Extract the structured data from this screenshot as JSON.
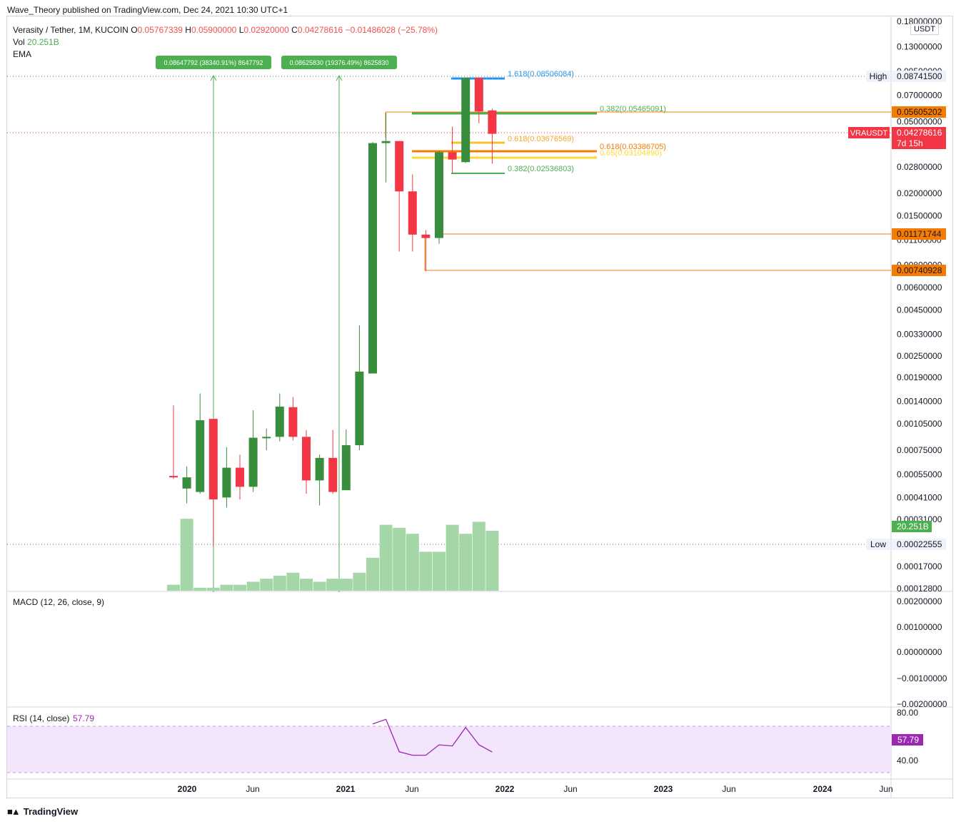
{
  "header": {
    "published": "Wave_Theory published on TradingView.com, Dec 24, 2021 10:30 UTC+1"
  },
  "legend": {
    "symbol": "Verasity / Tether, 1M, KUCOIN",
    "o_label": "O",
    "o": "0.05767339",
    "h_label": "H",
    "h": "0.05900000",
    "l_label": "L",
    "l": "0.02920000",
    "c_label": "C",
    "c": "0.04278616",
    "change": "−0.01486028 (−25.78%)",
    "vol_label": "Vol",
    "vol": "20.251B",
    "ema_label": "EMA"
  },
  "currency": "USDT",
  "colors": {
    "up": "#388e3c",
    "down": "#f23645",
    "volume_up": "#a5d6a7",
    "volume_brown": "#a1887f",
    "macd_bg": "#ffffff",
    "rsi_band": "#f3e5fc",
    "rsi_line": "#9c27b0",
    "orange": "#f57c00",
    "green_line": "#4caf50",
    "blue": "#2196f3",
    "yellow": "#fdd835"
  },
  "price_axis": [
    "0.18000000",
    "0.13000000",
    "0.09500000",
    "0.07000000",
    "0.05000000",
    "0.02800000",
    "0.02000000",
    "0.01500000",
    "0.01100000",
    "0.00800000",
    "0.00600000",
    "0.00450000",
    "0.00330000",
    "0.00250000",
    "0.00190000",
    "0.00140000",
    "0.00105000",
    "0.00075000",
    "0.00055000",
    "0.00041000",
    "0.00031000",
    "0.00017000",
    "0.00012800"
  ],
  "price_tags": [
    {
      "label": "High",
      "value": "0.08741500",
      "kind": "hl"
    },
    {
      "label": "",
      "value": "0.05605202",
      "kind": "orange"
    },
    {
      "label": "VRAUSDT",
      "value": "0.04278616",
      "sub": "7d 15h",
      "kind": "red"
    },
    {
      "label": "",
      "value": "0.01171744",
      "kind": "orange"
    },
    {
      "label": "",
      "value": "0.00740928",
      "kind": "orange"
    },
    {
      "label": "",
      "value": "20.251B",
      "kind": "green"
    },
    {
      "label": "Low",
      "value": "0.00022555",
      "kind": "hl"
    }
  ],
  "annotations": {
    "measure1": "0.08647792 (38340.91%) 8647792",
    "measure2": "0.08625830 (19376.49%) 8625830",
    "fib_1618": "1.618(0.08506084)",
    "fib_0382_top": "0.382(0.05465091)",
    "fib_0618_a": "0.618(0.03676569)",
    "fib_0618_b": "0.618(0.03386705)",
    "fib_065": "0.65(0.03104890)",
    "fib_0382_bot": "0.382(0.02536803)"
  },
  "macd": {
    "title": "MACD (12, 26, close, 9)",
    "axis": [
      "0.00200000",
      "0.00100000",
      "0.00000000",
      "−0.00100000",
      "−0.00200000"
    ]
  },
  "rsi": {
    "title": "RSI (14, close)",
    "value": "57.79",
    "axis": [
      "80.00",
      "40.00"
    ]
  },
  "time_axis": [
    {
      "label": "2020",
      "bold": true
    },
    {
      "label": "Jun",
      "bold": false
    },
    {
      "label": "2021",
      "bold": true
    },
    {
      "label": "Jun",
      "bold": false
    },
    {
      "label": "2022",
      "bold": true
    },
    {
      "label": "Jun",
      "bold": false
    },
    {
      "label": "2023",
      "bold": true
    },
    {
      "label": "Jun",
      "bold": false
    },
    {
      "label": "2024",
      "bold": true
    },
    {
      "label": "Jun",
      "bold": false
    }
  ],
  "footer": {
    "brand": "TradingView"
  },
  "chart_data": {
    "type": "candlestick",
    "title": "Verasity / Tether, 1M, KUCOIN",
    "scale": "log",
    "ylim": [
      0.000128,
      0.18
    ],
    "candles": [
      {
        "t": "2019-11",
        "o": 0.00054,
        "h": 0.00133,
        "l": 0.00052,
        "c": 0.00053
      },
      {
        "t": "2019-12",
        "o": 0.00046,
        "h": 0.00061,
        "l": 0.00038,
        "c": 0.00053
      },
      {
        "t": "2020-01",
        "o": 0.00044,
        "h": 0.00155,
        "l": 0.00043,
        "c": 0.0011
      },
      {
        "t": "2020-02",
        "o": 0.00112,
        "h": 0.00112,
        "l": 0.00022,
        "c": 0.0004
      },
      {
        "t": "2020-03",
        "o": 0.00041,
        "h": 0.00078,
        "l": 0.00036,
        "c": 0.0006
      },
      {
        "t": "2020-04",
        "o": 0.0006,
        "h": 0.00071,
        "l": 0.0004,
        "c": 0.00047
      },
      {
        "t": "2020-05",
        "o": 0.00047,
        "h": 0.00125,
        "l": 0.00044,
        "c": 0.00088
      },
      {
        "t": "2020-06",
        "o": 0.00088,
        "h": 0.00099,
        "l": 0.00075,
        "c": 0.00089
      },
      {
        "t": "2020-07",
        "o": 0.00089,
        "h": 0.00155,
        "l": 0.00084,
        "c": 0.00131
      },
      {
        "t": "2020-08",
        "o": 0.0013,
        "h": 0.00148,
        "l": 0.00085,
        "c": 0.00089
      },
      {
        "t": "2020-09",
        "o": 0.00089,
        "h": 0.00097,
        "l": 0.00043,
        "c": 0.00051
      },
      {
        "t": "2020-10",
        "o": 0.00051,
        "h": 0.00071,
        "l": 0.00037,
        "c": 0.00068
      },
      {
        "t": "2020-11",
        "o": 0.00068,
        "h": 0.00097,
        "l": 0.00043,
        "c": 0.00044
      },
      {
        "t": "2020-12",
        "o": 0.00045,
        "h": 0.00098,
        "l": 0.00045,
        "c": 0.0008
      },
      {
        "t": "2021-01",
        "o": 0.0008,
        "h": 0.0037,
        "l": 0.00075,
        "c": 0.00205
      },
      {
        "t": "2021-02",
        "o": 0.002,
        "h": 0.0385,
        "l": 0.002,
        "c": 0.038
      },
      {
        "t": "2021-03",
        "o": 0.038,
        "h": 0.056,
        "l": 0.023,
        "c": 0.039
      },
      {
        "t": "2021-04",
        "o": 0.039,
        "h": 0.039,
        "l": 0.0095,
        "c": 0.0205
      },
      {
        "t": "2021-05",
        "o": 0.0205,
        "h": 0.0255,
        "l": 0.0095,
        "c": 0.0118
      },
      {
        "t": "2021-06",
        "o": 0.0118,
        "h": 0.0125,
        "l": 0.0074,
        "c": 0.0113
      },
      {
        "t": "2021-07",
        "o": 0.0113,
        "h": 0.0345,
        "l": 0.0105,
        "c": 0.0338
      },
      {
        "t": "2021-08",
        "o": 0.0338,
        "h": 0.047,
        "l": 0.026,
        "c": 0.0308
      },
      {
        "t": "2021-09",
        "o": 0.0298,
        "h": 0.0875,
        "l": 0.0295,
        "c": 0.0875
      },
      {
        "t": "2021-10",
        "o": 0.0875,
        "h": 0.0875,
        "l": 0.049,
        "c": 0.057
      },
      {
        "t": "2021-11",
        "o": 0.05767339,
        "h": 0.059,
        "l": 0.0292,
        "c": 0.04278616
      }
    ],
    "volume": [
      0.02,
      0.24,
      0.01,
      0.01,
      0.02,
      0.02,
      0.03,
      0.04,
      0.05,
      0.06,
      0.04,
      0.03,
      0.04,
      0.04,
      0.06,
      0.11,
      0.22,
      0.21,
      0.19,
      0.13,
      0.13,
      0.22,
      0.19,
      0.23,
      0.2
    ],
    "rsi": [
      null,
      null,
      null,
      null,
      null,
      null,
      null,
      null,
      null,
      null,
      null,
      null,
      null,
      null,
      null,
      82,
      86,
      58,
      55,
      55,
      64,
      63,
      79,
      64,
      57.79
    ]
  }
}
